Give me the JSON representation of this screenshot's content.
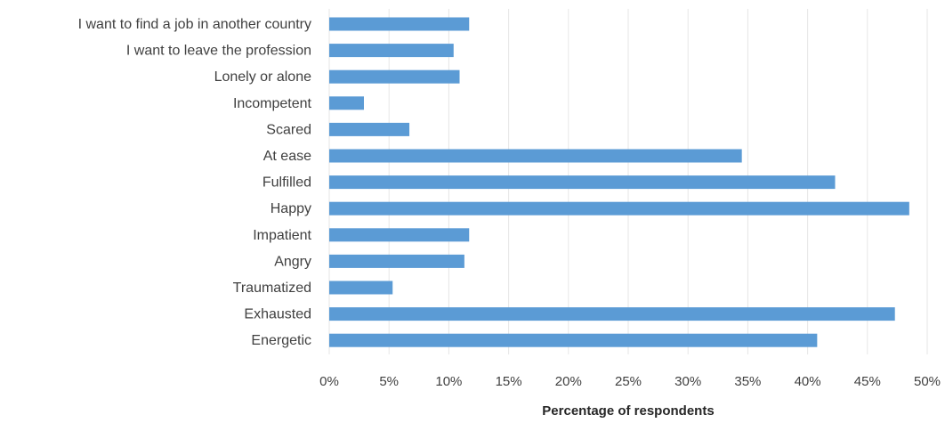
{
  "chart_data": {
    "type": "bar",
    "orientation": "horizontal",
    "categories": [
      "I want to find a job in another country",
      "I want to leave the profession",
      "Lonely or alone",
      "Incompetent",
      "Scared",
      "At ease",
      "Fulfilled",
      "Happy",
      "Impatient",
      "Angry",
      "Traumatized",
      "Exhausted",
      "Energetic"
    ],
    "values": [
      11.7,
      10.4,
      10.9,
      2.9,
      6.7,
      34.5,
      42.3,
      48.5,
      11.7,
      11.3,
      5.3,
      47.3,
      40.8
    ],
    "xlabel": "Percentage of respondents",
    "ylabel": "",
    "xlim": [
      0,
      50
    ],
    "xticks": [
      "0%",
      "5%",
      "10%",
      "15%",
      "20%",
      "25%",
      "30%",
      "35%",
      "40%",
      "45%",
      "50%"
    ],
    "grid": true,
    "legend": "none",
    "bar_color": "#5b9bd5",
    "grid_color": "#e6e6e6",
    "text_color": "#404040"
  }
}
